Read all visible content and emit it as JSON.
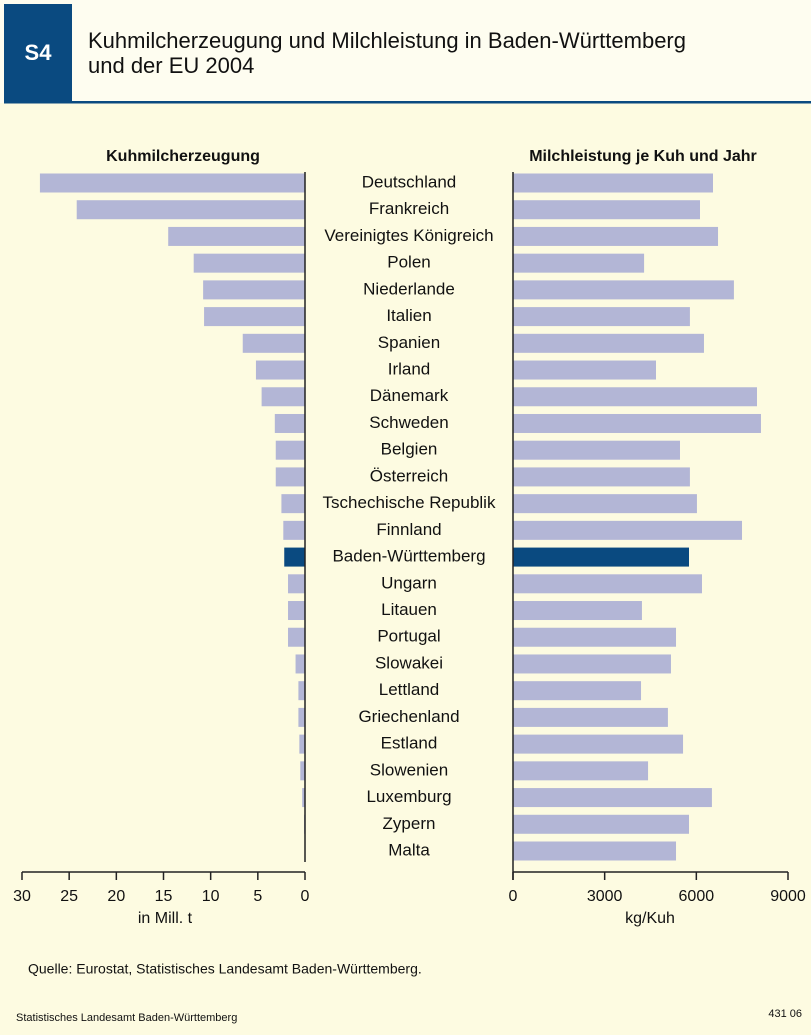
{
  "header": {
    "badge": "S4",
    "title_lines": [
      "Kuhmilcherzeugung und Milchleistung in Baden-Württemberg",
      "und der EU 2004"
    ]
  },
  "chart_data": [
    {
      "type": "hbar",
      "title": "Kuhmilcherzeugung",
      "xlabel": "in Mill. t",
      "categories": [
        "Deutschland",
        "Frankreich",
        "Vereinigtes Königreich",
        "Polen",
        "Niederlande",
        "Italien",
        "Spanien",
        "Irland",
        "Dänemark",
        "Schweden",
        "Belgien",
        "Österreich",
        "Tschechische Republik",
        "Finnland",
        "Baden-Württemberg",
        "Ungarn",
        "Litauen",
        "Portugal",
        "Slowakei",
        "Lettland",
        "Griechenland",
        "Estland",
        "Slowenien",
        "Luxemburg",
        "Zypern",
        "Malta"
      ],
      "values": [
        28.1,
        24.2,
        14.5,
        11.8,
        10.8,
        10.7,
        6.6,
        5.2,
        4.6,
        3.2,
        3.1,
        3.1,
        2.5,
        2.3,
        2.2,
        1.8,
        1.8,
        1.8,
        1.0,
        0.7,
        0.7,
        0.6,
        0.5,
        0.3,
        0.1,
        0.04
      ],
      "colors": [
        "#b3b6d6",
        "#b3b6d6",
        "#b3b6d6",
        "#b3b6d6",
        "#b3b6d6",
        "#b3b6d6",
        "#b3b6d6",
        "#b3b6d6",
        "#b3b6d6",
        "#b3b6d6",
        "#b3b6d6",
        "#b3b6d6",
        "#b3b6d6",
        "#b3b6d6",
        "#0a4a80",
        "#b3b6d6",
        "#b3b6d6",
        "#b3b6d6",
        "#b3b6d6",
        "#b3b6d6",
        "#b3b6d6",
        "#b3b6d6",
        "#b3b6d6",
        "#b3b6d6",
        "#b3b6d6",
        "#b3b6d6"
      ],
      "xlim": [
        30,
        0
      ],
      "xticks": [
        30,
        25,
        20,
        15,
        10,
        5,
        0
      ]
    },
    {
      "type": "hbar",
      "title": "Milchleistung je Kuh und Jahr",
      "xlabel": "kg/Kuh",
      "values": [
        6545,
        6120,
        6710,
        4290,
        7230,
        5790,
        6250,
        4680,
        7985,
        8115,
        5465,
        5790,
        6020,
        7495,
        5760,
        6185,
        4220,
        5335,
        5170,
        4190,
        5070,
        5565,
        4420,
        6510,
        5760,
        5335
      ],
      "colors": [
        "#b3b6d6",
        "#b3b6d6",
        "#b3b6d6",
        "#b3b6d6",
        "#b3b6d6",
        "#b3b6d6",
        "#b3b6d6",
        "#b3b6d6",
        "#b3b6d6",
        "#b3b6d6",
        "#b3b6d6",
        "#b3b6d6",
        "#b3b6d6",
        "#b3b6d6",
        "#0a4a80",
        "#b3b6d6",
        "#b3b6d6",
        "#b3b6d6",
        "#b3b6d6",
        "#b3b6d6",
        "#b3b6d6",
        "#b3b6d6",
        "#b3b6d6",
        "#b3b6d6",
        "#b3b6d6",
        "#b3b6d6"
      ],
      "xlim": [
        0,
        9000
      ],
      "xticks": [
        0,
        3000,
        6000,
        9000
      ]
    }
  ],
  "footer": {
    "source": "Quelle: Eurostat, Statistisches Landesamt Baden-Württemberg.",
    "publisher": "Statistisches Landesamt Baden-Württemberg",
    "code": "431 06"
  }
}
